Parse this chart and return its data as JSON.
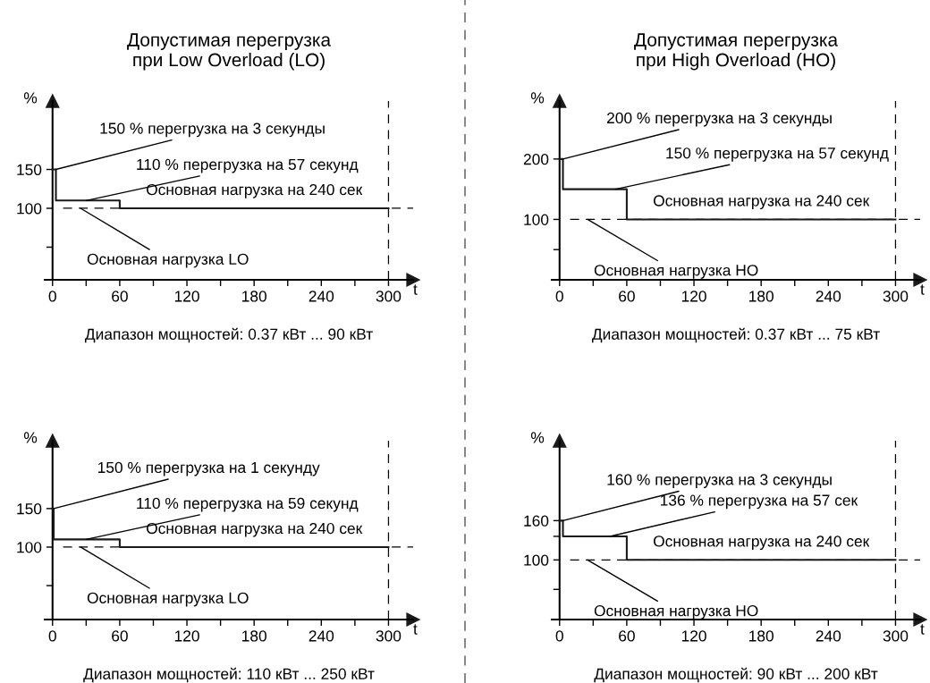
{
  "chart_data": [
    {
      "type": "step",
      "title": "Допустимая перегрузка\nпри Low Overload (LO)",
      "xlabel": "t",
      "ylabel": "%",
      "color": "#1a1a1a",
      "x": [
        0,
        3,
        60,
        300
      ],
      "values": [
        150,
        110,
        100,
        100
      ],
      "xlim": [
        -7,
        322
      ],
      "xticks": [
        0,
        {
          "value": 30,
          "label": null
        },
        60,
        {
          "value": 90,
          "label": null
        },
        120,
        {
          "value": 150,
          "label": null
        },
        180,
        {
          "value": 210,
          "label": null
        },
        240,
        {
          "value": 270,
          "label": null
        },
        300
      ],
      "ylim": [
        8,
        238
      ],
      "yticks": [
        {
          "value": 50,
          "label": null
        },
        100,
        150
      ],
      "ref_lines": [
        {
          "axis": "y",
          "value": 100,
          "color": "#000000",
          "line_style": "dashed"
        },
        {
          "axis": "x",
          "value": 300,
          "color": "#000000",
          "line_style": "dashed"
        }
      ],
      "annotations": [
        {
          "text": "150 % перегрузка на 3 секунды",
          "x": 3,
          "y": 150
        },
        {
          "text": "110 % перегрузка на 57 секунд",
          "x": 30,
          "y": 110
        },
        {
          "text": "Основная нагрузка на 240 сек",
          "x": 180,
          "y": 100
        },
        {
          "text": "Основная нагрузка LO",
          "x": 25,
          "y": 100
        },
        "Диапазон мощностей: 0.37 кВт ... 90 кВт"
      ]
    },
    {
      "type": "step",
      "title": "Допустимая перегрузка\nпри High Overload (HO)",
      "xlabel": "t",
      "ylabel": "%",
      "color": "#1a1a1a",
      "x": [
        0,
        3,
        60,
        300
      ],
      "values": [
        200,
        150,
        100,
        100
      ],
      "xlim": [
        -7,
        322
      ],
      "xticks": [
        0,
        {
          "value": 30,
          "label": null
        },
        60,
        {
          "value": 90,
          "label": null
        },
        120,
        {
          "value": 150,
          "label": null
        },
        180,
        {
          "value": 210,
          "label": null
        },
        240,
        {
          "value": 270,
          "label": null
        },
        300
      ],
      "ylim": [
        0,
        296
      ],
      "yticks": [
        {
          "value": 50,
          "label": null
        },
        100,
        200
      ],
      "ref_lines": [
        {
          "axis": "y",
          "value": 100,
          "color": "#000000",
          "line_style": "dashed"
        },
        {
          "axis": "x",
          "value": 300,
          "color": "#000000",
          "line_style": "dashed"
        }
      ],
      "annotations": [
        {
          "text": "200 % перегрузка на 3 секунды",
          "x": 3,
          "y": 200
        },
        {
          "text": "150 % перегрузка на 57 секунд",
          "x": 50,
          "y": 150
        },
        {
          "text": "Основная нагрузка на 240 сек",
          "x": 180,
          "y": 100
        },
        {
          "text": "Основная нагрузка HO",
          "x": 25,
          "y": 100
        },
        "Диапазон мощностей: 0.37 кВт ... 75 кВт"
      ]
    },
    {
      "type": "step",
      "xlabel": "t",
      "ylabel": "%",
      "color": "#1a1a1a",
      "x": [
        0,
        1,
        60,
        300
      ],
      "values": [
        150,
        110,
        100,
        100
      ],
      "xlim": [
        -7,
        322
      ],
      "xticks": [
        0,
        {
          "value": 30,
          "label": null
        },
        60,
        {
          "value": 90,
          "label": null
        },
        120,
        {
          "value": 150,
          "label": null
        },
        180,
        {
          "value": 210,
          "label": null
        },
        240,
        {
          "value": 270,
          "label": null
        },
        300
      ],
      "ylim": [
        6,
        238
      ],
      "yticks": [
        {
          "value": 50,
          "label": null
        },
        100,
        150
      ],
      "ref_lines": [
        {
          "axis": "y",
          "value": 100,
          "color": "#000000",
          "line_style": "dashed"
        },
        {
          "axis": "x",
          "value": 300,
          "color": "#000000",
          "line_style": "dashed"
        }
      ],
      "annotations": [
        {
          "text": "150 % перегрузка на 1 секунду",
          "x": 1,
          "y": 150
        },
        {
          "text": "110 % перегрузка на 59 секунд",
          "x": 30,
          "y": 110
        },
        {
          "text": "Основная нагрузка на 240 сек",
          "x": 180,
          "y": 100
        },
        {
          "text": "Основная нагрузка LO",
          "x": 25,
          "y": 100
        },
        "Диапазон мощностей: 110 кВт ... 250 кВт"
      ]
    },
    {
      "type": "step",
      "xlabel": "t",
      "ylabel": "%",
      "color": "#1a1a1a",
      "x": [
        0,
        3,
        60,
        300
      ],
      "values": [
        160,
        136,
        100,
        100
      ],
      "xlim": [
        -7,
        322
      ],
      "xticks": [
        0,
        {
          "value": 30,
          "label": null
        },
        60,
        {
          "value": 90,
          "label": null
        },
        120,
        {
          "value": 150,
          "label": null
        },
        180,
        {
          "value": 210,
          "label": null
        },
        240,
        {
          "value": 270,
          "label": null
        },
        300
      ],
      "ylim": [
        9,
        282
      ],
      "yticks": [
        {
          "value": 55,
          "label": null
        },
        100,
        {
          "value": 136,
          "label": null
        },
        160
      ],
      "ref_lines": [
        {
          "axis": "y",
          "value": 100,
          "color": "#000000",
          "line_style": "dashed"
        },
        {
          "axis": "x",
          "value": 300,
          "color": "#000000",
          "line_style": "dashed"
        }
      ],
      "annotations": [
        {
          "text": "160 % перегрузка на 3 секунды",
          "x": 3,
          "y": 160
        },
        {
          "text": "136 % перегрузка на 57 сек",
          "x": 45,
          "y": 136
        },
        {
          "text": "Основная нагрузка на 240 сек",
          "x": 180,
          "y": 100
        },
        {
          "text": "Основная нагрузка HO",
          "x": 25,
          "y": 100
        },
        "Диапазон мощностей: 90 кВт ... 200 кВт"
      ]
    }
  ]
}
